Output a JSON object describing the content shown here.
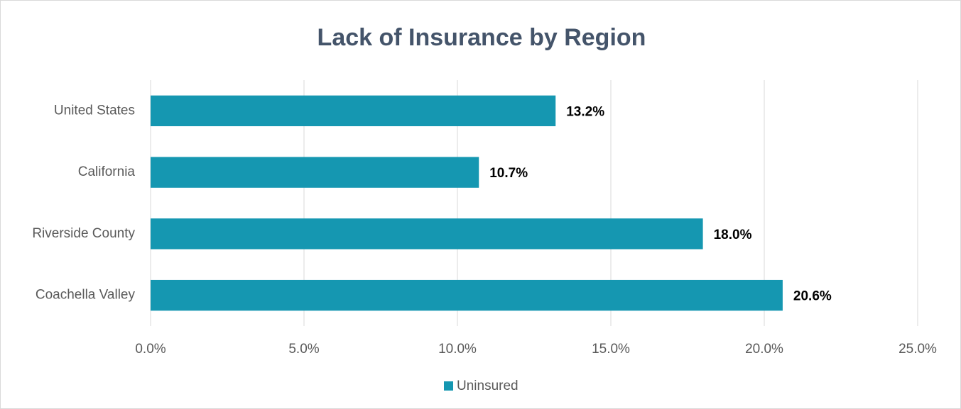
{
  "chart_data": {
    "type": "bar",
    "orientation": "horizontal",
    "title": "Lack of Insurance by Region",
    "categories": [
      "United States",
      "California",
      "Riverside County",
      "Coachella Valley"
    ],
    "series": [
      {
        "name": "Uninsured",
        "color": "#1597b1",
        "values": [
          13.2,
          10.7,
          18.0,
          20.6
        ],
        "value_labels": [
          "13.2%",
          "10.7%",
          "18.0%",
          "20.6%"
        ]
      }
    ],
    "xlim": [
      0,
      25
    ],
    "xticks": [
      {
        "value": 0,
        "label": "0.0%"
      },
      {
        "value": 5,
        "label": "5.0%"
      },
      {
        "value": 10,
        "label": "10.0%"
      },
      {
        "value": 15,
        "label": "15.0%"
      },
      {
        "value": 20,
        "label": "20.0%"
      },
      {
        "value": 25,
        "label": "25.0%"
      }
    ],
    "grid": true,
    "legend": "bottom"
  }
}
